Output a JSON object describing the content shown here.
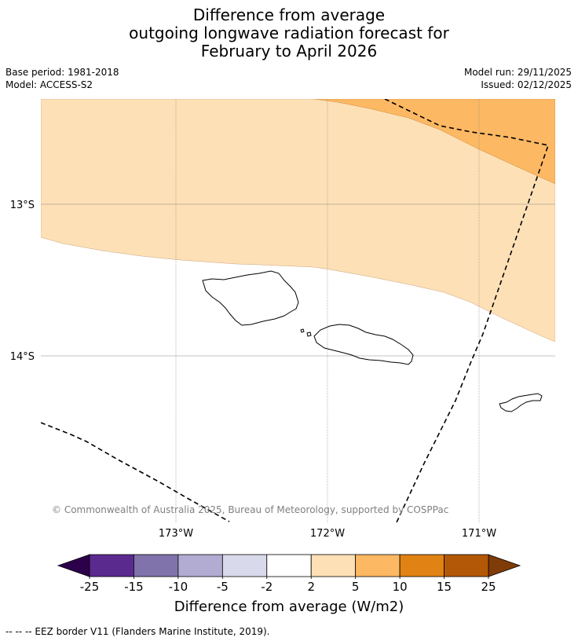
{
  "title": {
    "line1": "Difference from average",
    "line2": "outgoing longwave radiation forecast for",
    "line3": "February to April 2026"
  },
  "meta": {
    "base_period": "Base period: 1981-2018",
    "model": "Model: ACCESS-S2",
    "model_run": "Model run: 29/11/2025",
    "issued": "Issued: 02/12/2025"
  },
  "map": {
    "lat_labels": [
      "13°S",
      "14°S"
    ],
    "lon_labels": [
      "173°W",
      "172°W",
      "171°W"
    ],
    "copyright": "© Commonwealth of Australia 2025, Bureau of Meteorology, supported by COSPPac",
    "features": [
      "Samoa (Savai'i)",
      "Samoa (Upolu)",
      "Tutuila",
      "EEZ border"
    ]
  },
  "colorbar": {
    "label": "Difference from average (W/m2)",
    "ticks": [
      "-25",
      "-15",
      "-10",
      "-5",
      "-2",
      "2",
      "5",
      "10",
      "15",
      "25"
    ],
    "colors": {
      "below_min": "#2d004b",
      "bins": [
        "#5b2a8e",
        "#8073ac",
        "#b2abd2",
        "#d8daeb",
        "#ffffff",
        "#fee0b6",
        "#fdb863",
        "#e08214",
        "#b35806"
      ],
      "above_max": "#7f3b08"
    }
  },
  "footnote": "--  --  -- EEZ border V11 (Flanders Marine Institute, 2019)."
}
